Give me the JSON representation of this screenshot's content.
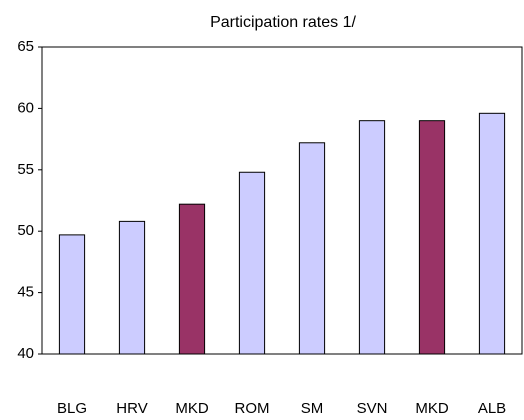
{
  "chart_data": {
    "type": "bar",
    "title": "Participation rates 1/",
    "categories": [
      "BLG",
      "HRV",
      "MKD",
      "ROM",
      "SM",
      "SVN",
      "MKD",
      "ALB"
    ],
    "values": [
      49.7,
      50.8,
      52.2,
      54.8,
      57.2,
      59.0,
      59.0,
      59.6
    ],
    "colors": [
      "#ccccff",
      "#ccccff",
      "#993366",
      "#ccccff",
      "#ccccff",
      "#ccccff",
      "#993366",
      "#ccccff"
    ],
    "ylim": [
      40,
      65
    ],
    "yticks": [
      40,
      45,
      50,
      55,
      60,
      65
    ],
    "grid": false
  }
}
